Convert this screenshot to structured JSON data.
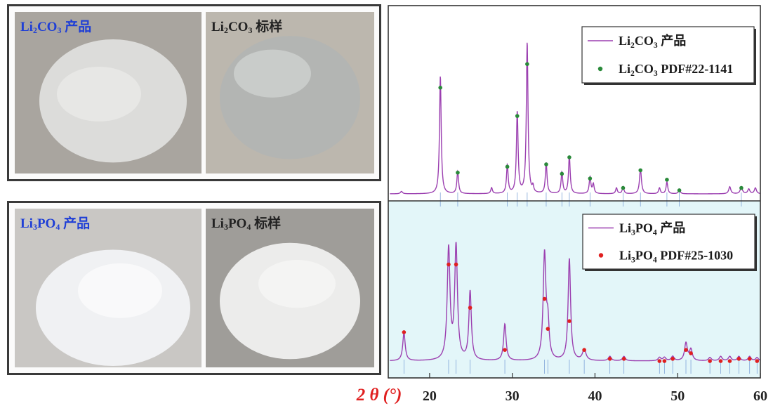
{
  "photos": {
    "top": [
      {
        "name_parts": [
          "Li",
          "2",
          "CO",
          "3",
          " 产品"
        ],
        "color": "#1f3fd6",
        "tone": "#dcdcda",
        "bg": "#a9a59f"
      },
      {
        "name_parts": [
          "Li",
          "2",
          "CO",
          "3",
          " 标样"
        ],
        "color": "#222222",
        "tone": "#b3b5b3",
        "bg": "#bcb7ae"
      }
    ],
    "bottom": [
      {
        "name_parts": [
          "Li",
          "3",
          "PO",
          "4",
          " 产品"
        ],
        "color": "#1f3fd6",
        "tone": "#f0f1f3",
        "bg": "#c9c7c4"
      },
      {
        "name_parts": [
          "Li",
          "3",
          "PO",
          "4",
          " 标样"
        ],
        "color": "#222222",
        "tone": "#ececeb",
        "bg": "#9f9d99"
      }
    ]
  },
  "chart_data": {
    "type": "line",
    "x_axis": {
      "label_parts": [
        "2",
        "θ",
        "(°)"
      ],
      "label_color": "#e02020",
      "range": [
        15,
        60
      ],
      "ticks": [
        20,
        30,
        40,
        50,
        60
      ],
      "tick_labels": [
        "20",
        "30",
        "40",
        "50",
        "60"
      ]
    },
    "top_panel": {
      "background": "#ffffff",
      "line_color": "#9b3fb0",
      "marker_color": "#2a8a3a",
      "peaks": [
        [
          16.6,
          0.02,
          0.15
        ],
        [
          21.3,
          1.0,
          0.12
        ],
        [
          23.4,
          0.19,
          0.12
        ],
        [
          27.5,
          0.05,
          0.12
        ],
        [
          29.4,
          0.24,
          0.12
        ],
        [
          30.6,
          0.69,
          0.12
        ],
        [
          31.8,
          1.28,
          0.12
        ],
        [
          32.5,
          0.05,
          0.1
        ],
        [
          34.1,
          0.26,
          0.12
        ],
        [
          36.0,
          0.18,
          0.12
        ],
        [
          36.9,
          0.32,
          0.12
        ],
        [
          39.4,
          0.14,
          0.12
        ],
        [
          39.8,
          0.08,
          0.12
        ],
        [
          42.6,
          0.05,
          0.12
        ],
        [
          43.4,
          0.06,
          0.12
        ],
        [
          45.5,
          0.21,
          0.14
        ],
        [
          47.8,
          0.05,
          0.12
        ],
        [
          48.7,
          0.1,
          0.12
        ],
        [
          50.2,
          0.04,
          0.12
        ],
        [
          56.3,
          0.06,
          0.15
        ],
        [
          57.7,
          0.06,
          0.15
        ],
        [
          58.6,
          0.04,
          0.15
        ],
        [
          59.4,
          0.05,
          0.15
        ]
      ],
      "markers": [
        [
          21.3,
          0.9
        ],
        [
          23.4,
          0.18
        ],
        [
          29.4,
          0.23
        ],
        [
          30.6,
          0.66
        ],
        [
          31.8,
          1.1
        ],
        [
          34.1,
          0.25
        ],
        [
          36.0,
          0.17
        ],
        [
          36.9,
          0.31
        ],
        [
          39.4,
          0.13
        ],
        [
          43.4,
          0.05
        ],
        [
          45.5,
          0.2
        ],
        [
          48.7,
          0.12
        ],
        [
          50.2,
          0.03
        ],
        [
          57.7,
          0.05
        ]
      ],
      "legend": [
        {
          "label_parts": [
            "Li",
            "2",
            "CO",
            "3",
            " 产品"
          ],
          "style": "line"
        },
        {
          "label_parts": [
            "Li",
            "2",
            "CO",
            "3",
            " PDF#22-1141"
          ],
          "style": "marker"
        }
      ]
    },
    "bottom_panel": {
      "background": "#e3f6f9",
      "line_color": "#9b3fb0",
      "marker_color": "#e02020",
      "peaks": [
        [
          16.9,
          0.25,
          0.18
        ],
        [
          22.3,
          1.0,
          0.2
        ],
        [
          23.2,
          1.02,
          0.2
        ],
        [
          24.9,
          0.62,
          0.18
        ],
        [
          29.1,
          0.33,
          0.18
        ],
        [
          33.9,
          0.95,
          0.2
        ],
        [
          34.3,
          0.3,
          0.18
        ],
        [
          36.9,
          0.92,
          0.18
        ],
        [
          38.7,
          0.1,
          0.25
        ],
        [
          41.8,
          0.04,
          0.2
        ],
        [
          43.5,
          0.04,
          0.2
        ],
        [
          47.8,
          0.03,
          0.2
        ],
        [
          48.4,
          0.03,
          0.2
        ],
        [
          49.4,
          0.04,
          0.2
        ],
        [
          51.0,
          0.16,
          0.2
        ],
        [
          51.6,
          0.1,
          0.2
        ],
        [
          53.9,
          0.03,
          0.2
        ],
        [
          55.2,
          0.04,
          0.2
        ],
        [
          56.3,
          0.04,
          0.2
        ],
        [
          57.4,
          0.04,
          0.2
        ],
        [
          58.7,
          0.04,
          0.2
        ],
        [
          59.6,
          0.03,
          0.2
        ]
      ],
      "markers": [
        [
          16.9,
          0.26
        ],
        [
          22.3,
          0.87
        ],
        [
          23.2,
          0.87
        ],
        [
          24.9,
          0.48
        ],
        [
          29.1,
          0.1
        ],
        [
          33.9,
          0.56
        ],
        [
          34.3,
          0.29
        ],
        [
          36.9,
          0.36
        ],
        [
          38.7,
          0.1
        ],
        [
          41.8,
          0.02
        ],
        [
          43.5,
          0.02
        ],
        [
          47.8,
          0.0
        ],
        [
          48.4,
          0.0
        ],
        [
          49.4,
          0.02
        ],
        [
          51.0,
          0.1
        ],
        [
          51.6,
          0.07
        ],
        [
          53.9,
          0.0
        ],
        [
          55.2,
          0.0
        ],
        [
          56.3,
          0.0
        ],
        [
          57.4,
          0.02
        ],
        [
          58.7,
          0.02
        ],
        [
          59.6,
          0.0
        ]
      ],
      "legend": [
        {
          "label_parts": [
            "Li",
            "3",
            "PO",
            "4",
            " 产品"
          ],
          "style": "line"
        },
        {
          "label_parts": [
            "Li",
            "3",
            "PO",
            "4",
            " PDF#25-1030"
          ],
          "style": "marker"
        }
      ]
    }
  }
}
